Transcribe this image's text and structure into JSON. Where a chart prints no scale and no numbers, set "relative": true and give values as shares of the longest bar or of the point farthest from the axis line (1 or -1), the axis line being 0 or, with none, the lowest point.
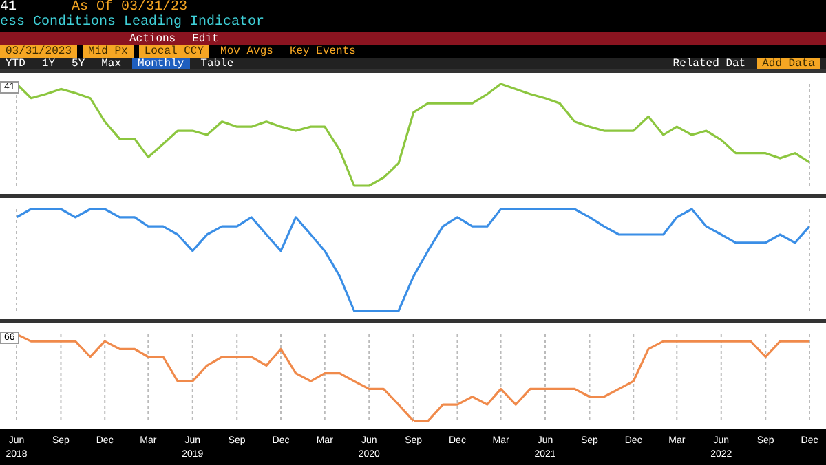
{
  "chart_data": [
    {
      "type": "line",
      "title": "ess Conditions Leading Indicator",
      "subtitle": "As Of 03/31/23",
      "annotations": [
        "41",
        "Actions",
        "Edit",
        "03/31/2023",
        "Mid Px",
        "Local CCY",
        "Mov Avgs",
        "Key Events",
        "YTD",
        "1Y",
        "5Y",
        "Max",
        "Monthly",
        "Table",
        "Related Dat",
        "Add Data"
      ],
      "relative": true,
      "grid": "x",
      "tick_labels": false,
      "xlim": [
        "2018-06",
        "2022-12"
      ],
      "x": [
        "2018-06",
        "2018-07",
        "2018-08",
        "2018-09",
        "2018-10",
        "2018-11",
        "2018-12",
        "2019-01",
        "2019-02",
        "2019-03",
        "2019-04",
        "2019-05",
        "2019-06",
        "2019-07",
        "2019-08",
        "2019-09",
        "2019-10",
        "2019-11",
        "2019-12",
        "2020-01",
        "2020-02",
        "2020-03",
        "2020-04",
        "2020-05",
        "2020-06",
        "2020-07",
        "2020-08",
        "2020-09",
        "2020-10",
        "2020-11",
        "2020-12",
        "2021-01",
        "2021-02",
        "2021-03",
        "2021-04",
        "2021-05",
        "2021-06",
        "2021-07",
        "2021-08",
        "2021-09",
        "2021-10",
        "2021-11",
        "2021-12",
        "2022-01",
        "2022-02",
        "2022-03",
        "2022-04",
        "2022-05",
        "2022-06",
        "2022-07",
        "2022-08",
        "2022-09",
        "2022-10",
        "2022-11",
        "2022-12"
      ],
      "series": [
        {
          "color": "#8cc63f",
          "values": [
            1.0,
            0.86,
            0.9,
            0.95,
            0.91,
            0.86,
            0.63,
            0.46,
            0.46,
            0.28,
            0.41,
            0.54,
            0.54,
            0.5,
            0.63,
            0.58,
            0.58,
            0.63,
            0.58,
            0.54,
            0.58,
            0.58,
            0.35,
            0,
            0,
            0.08,
            0.22,
            0.72,
            0.81,
            0.81,
            0.81,
            0.81,
            0.9,
            1.0,
            0.95,
            0.9,
            0.86,
            0.81,
            0.63,
            0.58,
            0.54,
            0.54,
            0.54,
            0.68,
            0.5,
            0.58,
            0.5,
            0.54,
            0.45,
            0.32,
            0.32,
            0.32,
            0.27,
            0.32,
            0.23
          ]
        }
      ]
    },
    {
      "type": "line",
      "relative": true,
      "grid": "x",
      "tick_labels": false,
      "xlim": [
        "2018-06",
        "2022-12"
      ],
      "x": [
        "2018-06",
        "2018-07",
        "2018-08",
        "2018-09",
        "2018-10",
        "2018-11",
        "2018-12",
        "2019-01",
        "2019-02",
        "2019-03",
        "2019-04",
        "2019-05",
        "2019-06",
        "2019-07",
        "2019-08",
        "2019-09",
        "2019-10",
        "2019-11",
        "2019-12",
        "2020-01",
        "2020-02",
        "2020-03",
        "2020-04",
        "2020-05",
        "2020-06",
        "2020-07",
        "2020-08",
        "2020-09",
        "2020-10",
        "2020-11",
        "2020-12",
        "2021-01",
        "2021-02",
        "2021-03",
        "2021-04",
        "2021-05",
        "2021-06",
        "2021-07",
        "2021-08",
        "2021-09",
        "2021-10",
        "2021-11",
        "2021-12",
        "2022-01",
        "2022-02",
        "2022-03",
        "2022-04",
        "2022-05",
        "2022-06",
        "2022-07",
        "2022-08",
        "2022-09",
        "2022-10",
        "2022-11",
        "2022-12"
      ],
      "series": [
        {
          "color": "#3a8ee6",
          "values": [
            0.92,
            1,
            1,
            1,
            0.92,
            1,
            1,
            0.92,
            0.92,
            0.83,
            0.83,
            0.75,
            0.59,
            0.75,
            0.83,
            0.83,
            0.92,
            0.75,
            0.59,
            0.92,
            0.75,
            0.59,
            0.34,
            0,
            0,
            0,
            0,
            0.34,
            0.59,
            0.83,
            0.92,
            0.83,
            0.83,
            1,
            1,
            1,
            1,
            1,
            1,
            0.92,
            0.83,
            0.75,
            0.75,
            0.75,
            0.75,
            0.92,
            1,
            0.83,
            0.75,
            0.67,
            0.67,
            0.67,
            0.75,
            0.67,
            0.83
          ]
        }
      ]
    },
    {
      "type": "line",
      "annotations": [
        "66"
      ],
      "relative": true,
      "grid": "x",
      "tick_labels": "x",
      "xlim": [
        "2018-06",
        "2022-12"
      ],
      "xticks": [
        {
          "value": "2018-06",
          "label": "Jun 2018"
        },
        {
          "value": "2018-09",
          "label": "Sep"
        },
        {
          "value": "2018-12",
          "label": "Dec"
        },
        {
          "value": "2019-03",
          "label": "Mar"
        },
        {
          "value": "2019-06",
          "label": "Jun 2019"
        },
        {
          "value": "2019-09",
          "label": "Sep"
        },
        {
          "value": "2019-12",
          "label": "Dec"
        },
        {
          "value": "2020-03",
          "label": "Mar"
        },
        {
          "value": "2020-06",
          "label": "Jun 2020"
        },
        {
          "value": "2020-09",
          "label": "Sep"
        },
        {
          "value": "2020-12",
          "label": "Dec"
        },
        {
          "value": "2021-03",
          "label": "Mar"
        },
        {
          "value": "2021-06",
          "label": "Jun 2021"
        },
        {
          "value": "2021-09",
          "label": "Sep"
        },
        {
          "value": "2021-12",
          "label": "Dec"
        },
        {
          "value": "2022-03",
          "label": "Mar"
        },
        {
          "value": "2022-06",
          "label": "Jun 2022"
        },
        {
          "value": "2022-09",
          "label": "Sep"
        },
        {
          "value": "2022-12",
          "label": "Dec"
        }
      ],
      "x": [
        "2018-06",
        "2018-07",
        "2018-08",
        "2018-09",
        "2018-10",
        "2018-11",
        "2018-12",
        "2019-01",
        "2019-02",
        "2019-03",
        "2019-04",
        "2019-05",
        "2019-06",
        "2019-07",
        "2019-08",
        "2019-09",
        "2019-10",
        "2019-11",
        "2019-12",
        "2020-01",
        "2020-02",
        "2020-03",
        "2020-04",
        "2020-05",
        "2020-06",
        "2020-07",
        "2020-08",
        "2020-09",
        "2020-10",
        "2020-11",
        "2020-12",
        "2021-01",
        "2021-02",
        "2021-03",
        "2021-04",
        "2021-05",
        "2021-06",
        "2021-07",
        "2021-08",
        "2021-09",
        "2021-10",
        "2021-11",
        "2021-12",
        "2022-01",
        "2022-02",
        "2022-03",
        "2022-04",
        "2022-05",
        "2022-06",
        "2022-07",
        "2022-08",
        "2022-09",
        "2022-10",
        "2022-11",
        "2022-12"
      ],
      "series": [
        {
          "color": "#f08a4b",
          "values": [
            1,
            0.92,
            0.92,
            0.92,
            0.92,
            0.74,
            0.92,
            0.83,
            0.83,
            0.74,
            0.74,
            0.46,
            0.46,
            0.64,
            0.74,
            0.74,
            0.74,
            0.64,
            0.83,
            0.55,
            0.46,
            0.55,
            0.55,
            0.46,
            0.37,
            0.37,
            0.19,
            0,
            0,
            0.19,
            0.19,
            0.28,
            0.19,
            0.37,
            0.19,
            0.37,
            0.37,
            0.37,
            0.37,
            0.28,
            0.28,
            0.37,
            0.46,
            0.83,
            0.92,
            0.92,
            0.92,
            0.92,
            0.92,
            0.92,
            0.92,
            0.74,
            0.92,
            0.92,
            0.92
          ]
        }
      ]
    }
  ]
}
